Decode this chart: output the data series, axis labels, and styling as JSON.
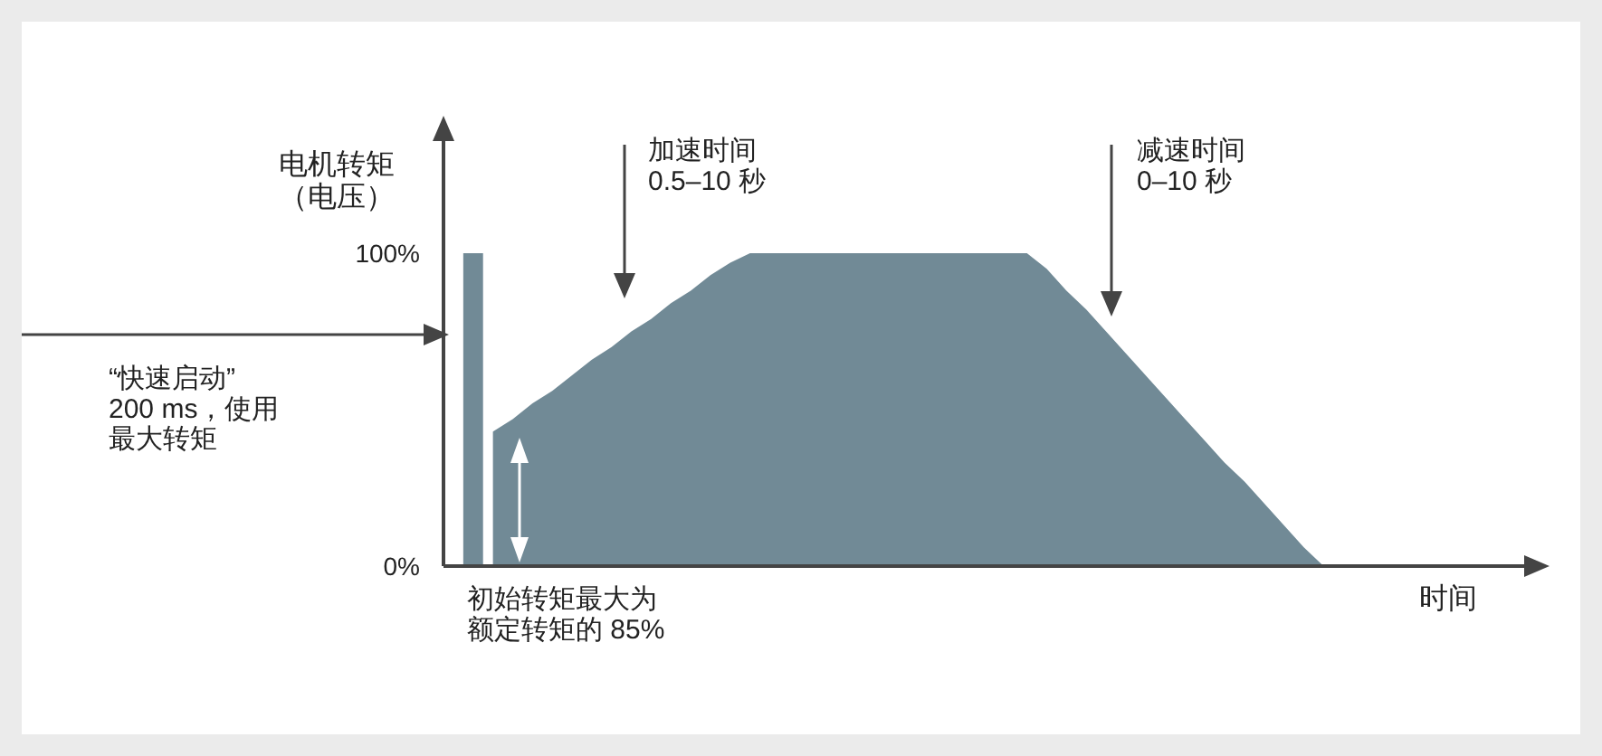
{
  "chart_data": {
    "type": "area",
    "ylabel": "电机转矩（电压）",
    "categories": [
      null,
      null,
      null,
      null,
      null,
      null,
      null,
      null,
      null,
      null,
      null,
      null,
      null,
      null,
      null,
      null,
      null,
      null,
      null,
      null,
      null,
      null,
      null,
      null,
      null,
      null,
      null,
      null,
      null,
      null,
      null,
      null,
      null,
      null,
      null,
      null,
      null,
      null,
      null,
      null,
      null,
      null,
      null,
      null,
      null,
      null,
      null,
      null,
      null,
      null,
      null,
      null,
      null,
      null
    ],
    "ylim": [
      0,
      100
    ],
    "yticks": [
      {
        "value": 0,
        "label": "0%"
      },
      {
        "value": 100,
        "label": "100%"
      }
    ],
    "series": [
      {
        "type": "bar",
        "color": "#718a96",
        "values": [
          null,
          100,
          null,
          null,
          null,
          null,
          null,
          null,
          null,
          null,
          null,
          null,
          null,
          null,
          null,
          null,
          null,
          null,
          null,
          null,
          null,
          null,
          null,
          null,
          null,
          null,
          null,
          null,
          null,
          null,
          null,
          null,
          null,
          null,
          null,
          null,
          null,
          null,
          null,
          null,
          null,
          null,
          null,
          null,
          null,
          null,
          null,
          null,
          null,
          null,
          null,
          null,
          null,
          null
        ]
      },
      {
        "color": "#718a96",
        "values": [
          null,
          null,
          43,
          47,
          52,
          56,
          61,
          66,
          70,
          75,
          79,
          84,
          88,
          93,
          97,
          100,
          100,
          100,
          100,
          100,
          100,
          100,
          100,
          100,
          100,
          100,
          100,
          100,
          100,
          100,
          95,
          88,
          82,
          75,
          68,
          61,
          54,
          47,
          40,
          33,
          27,
          20,
          13,
          6,
          0,
          null,
          null,
          null,
          null,
          null,
          null,
          null,
          null,
          null
        ]
      }
    ],
    "annotations": [
      "加速时间\n0.5–10 秒",
      "减速时间\n0–10 秒",
      "“快速启动”\n200 ms，使用最大转矩",
      "初始转矩最大为额定转矩的 85%",
      "时间"
    ]
  }
}
